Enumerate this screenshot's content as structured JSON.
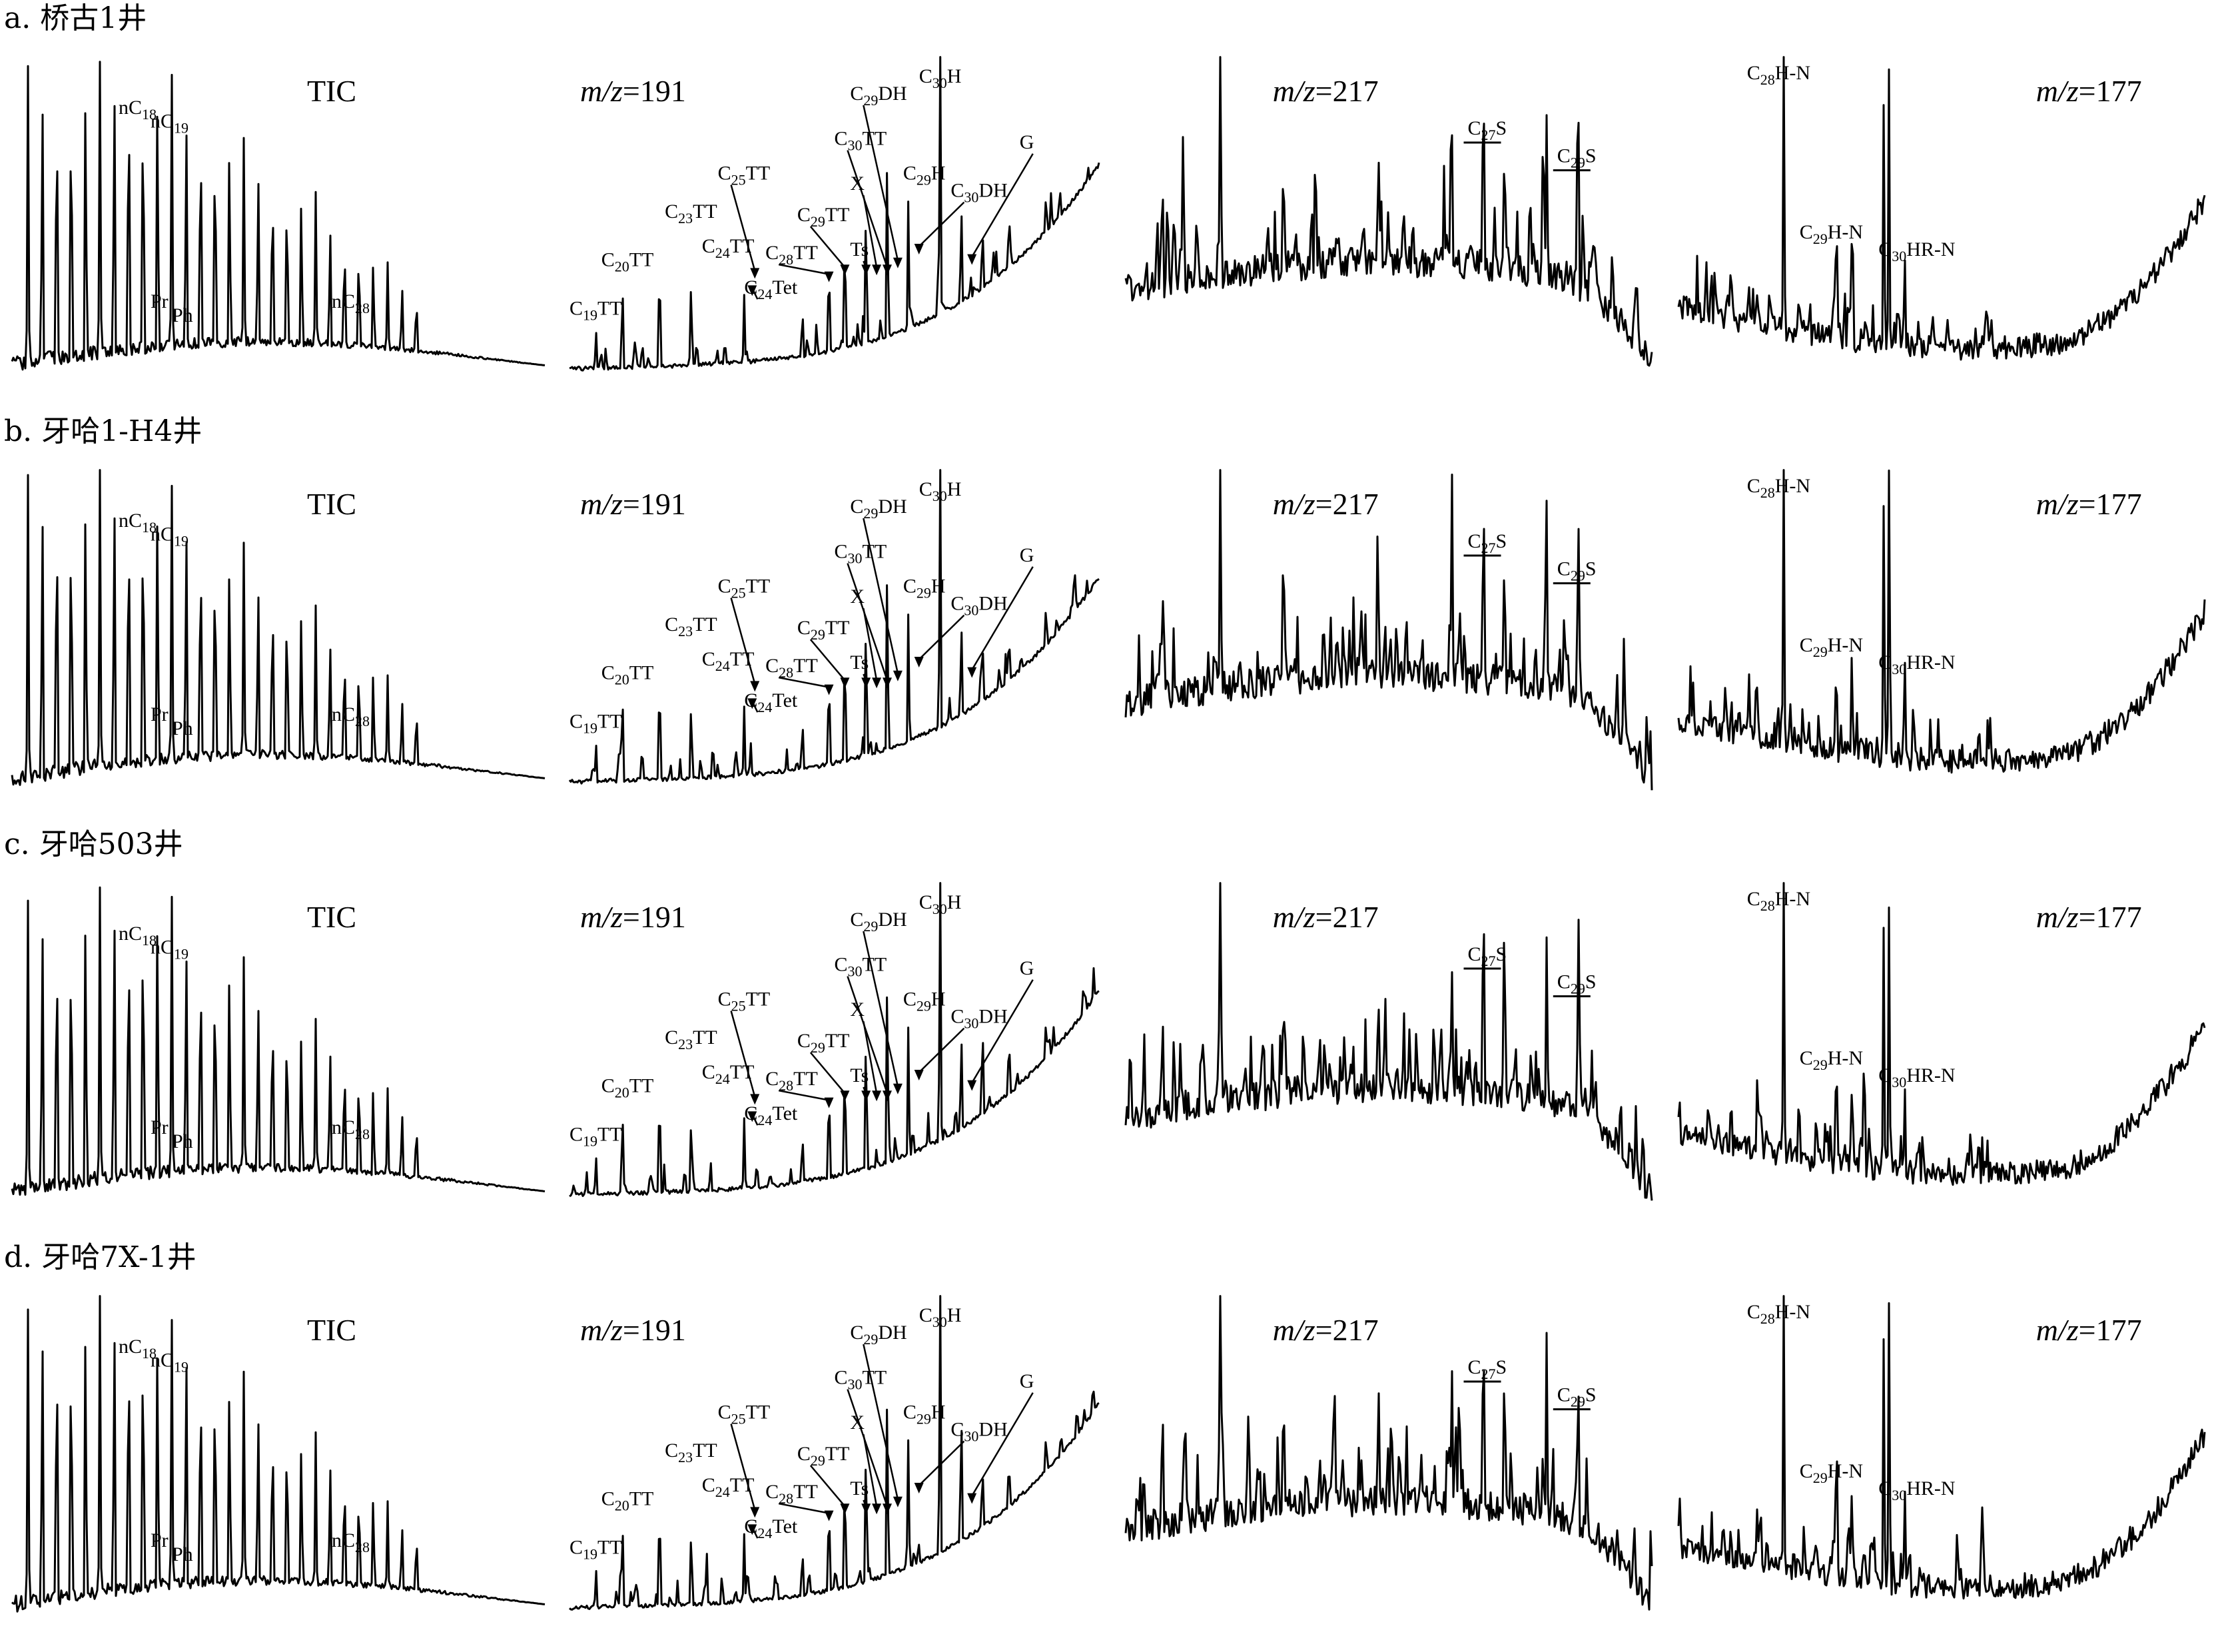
{
  "chart_data": {
    "type": "line",
    "rows": [
      {
        "label": "a. 桥古1井",
        "panels": [
          {
            "title": "TIC",
            "trace": "tic",
            "labels": [
              "nC18",
              "nC19",
              "Pr",
              "Ph",
              "nC28"
            ]
          },
          {
            "title": "m/z=191",
            "trace": "m191",
            "labels": [
              "C19TT",
              "C20TT",
              "C23TT",
              "C24TT",
              "C24Tet",
              "C25TT",
              "C28TT",
              "C29TT",
              "Ts",
              "X",
              "C30TT",
              "C29DH",
              "C29H",
              "C30H",
              "C30DH",
              "G"
            ]
          },
          {
            "title": "m/z=217",
            "trace": "m217",
            "labels": [
              "C27S",
              "C29S"
            ]
          },
          {
            "title": "m/z=177",
            "trace": "m177",
            "labels": [
              "C28H-N",
              "C29H-N",
              "C30HR-N"
            ]
          }
        ]
      },
      {
        "label": "b. 牙哈1-H4井",
        "panels": [
          {
            "title": "TIC",
            "trace": "tic",
            "labels": [
              "nC18",
              "nC19",
              "Pr",
              "Ph",
              "nC28"
            ]
          },
          {
            "title": "m/z=191",
            "trace": "m191",
            "labels": [
              "C19TT",
              "C20TT",
              "C23TT",
              "C24TT",
              "C24Tet",
              "C25TT",
              "C28TT",
              "C29TT",
              "Ts",
              "X",
              "C30TT",
              "C29DH",
              "C29H",
              "C30H",
              "C30DH",
              "G"
            ]
          },
          {
            "title": "m/z=217",
            "trace": "m217",
            "labels": [
              "C27S",
              "C29S"
            ]
          },
          {
            "title": "m/z=177",
            "trace": "m177",
            "labels": [
              "C28H-N",
              "C29H-N",
              "C30HR-N"
            ]
          }
        ]
      },
      {
        "label": "c. 牙哈503井",
        "panels": [
          {
            "title": "TIC",
            "trace": "tic",
            "labels": [
              "nC18",
              "nC19",
              "Pr",
              "Ph",
              "nC28"
            ]
          },
          {
            "title": "m/z=191",
            "trace": "m191",
            "labels": [
              "C19TT",
              "C20TT",
              "C23TT",
              "C24TT",
              "C24Tet",
              "C25TT",
              "C28TT",
              "C29TT",
              "Ts",
              "X",
              "C30TT",
              "C29DH",
              "C29H",
              "C30H",
              "C30DH",
              "G"
            ]
          },
          {
            "title": "m/z=217",
            "trace": "m217",
            "labels": [
              "C27S",
              "C29S"
            ]
          },
          {
            "title": "m/z=177",
            "trace": "m177",
            "labels": [
              "C28H-N",
              "C29H-N",
              "C30HR-N"
            ]
          }
        ]
      },
      {
        "label": "d. 牙哈7X-1井",
        "panels": [
          {
            "title": "TIC",
            "trace": "tic",
            "labels": [
              "nC18",
              "nC19",
              "Pr",
              "Ph",
              "nC28"
            ]
          },
          {
            "title": "m/z=191",
            "trace": "m191",
            "labels": [
              "C19TT",
              "C20TT",
              "C23TT",
              "C24TT",
              "C24Tet",
              "C25TT",
              "C28TT",
              "C29TT",
              "Ts",
              "X",
              "C30TT",
              "C29DH",
              "C29H",
              "C30H",
              "C30DH",
              "G"
            ]
          },
          {
            "title": "m/z=217",
            "trace": "m217",
            "labels": [
              "C27S",
              "C29S"
            ]
          },
          {
            "title": "m/z=177",
            "trace": "m177",
            "labels": [
              "C28H-N",
              "C29H-N",
              "C30HR-N"
            ]
          }
        ]
      }
    ]
  }
}
